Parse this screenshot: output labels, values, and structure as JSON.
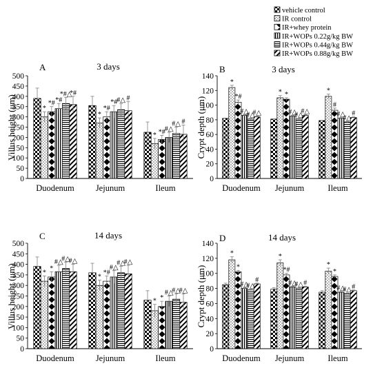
{
  "legend": {
    "entries": [
      "vehicle control",
      "IR control",
      "IR+whey protein",
      "IR+WOPs 0.22g/kg BW",
      "IR+WOPs 0.44g/kg BW",
      "IR+WOPs 0.88g/kg BW"
    ],
    "patterns": [
      "checker",
      "dots",
      "diamond",
      "vlines",
      "hlines",
      "diag"
    ]
  },
  "colors": {
    "bar_stroke": "#000000",
    "fill": "#ffffff",
    "axis": "#000000",
    "errorbar": "#7f7f7f"
  },
  "chart_data": [
    {
      "type": "bar",
      "panel": "A",
      "title": "3 days",
      "ylabel": "Villus height (μm)",
      "ylim": [
        0,
        500
      ],
      "ytick_step": 50,
      "categories": [
        "Duodenum",
        "Jejunum",
        "Ileum"
      ],
      "series": [
        {
          "name": "vehicle control",
          "values": [
            390,
            355,
            225
          ],
          "errors": [
            50,
            45,
            50
          ],
          "marks": [
            "",
            "",
            ""
          ]
        },
        {
          "name": "IR control",
          "values": [
            300,
            270,
            170
          ],
          "errors": [
            25,
            25,
            25
          ],
          "marks": [
            "*",
            "*",
            "*"
          ]
        },
        {
          "name": "IR+whey protein",
          "values": [
            325,
            300,
            190
          ],
          "errors": [
            25,
            25,
            20
          ],
          "marks": [
            "*#",
            "*#",
            "*#"
          ]
        },
        {
          "name": "IR+WOPs 0.22g/kg BW",
          "values": [
            340,
            325,
            200
          ],
          "errors": [
            25,
            30,
            25
          ],
          "marks": [
            "*#",
            "*#",
            "#△"
          ]
        },
        {
          "name": "IR+WOPs 0.44g/kg BW",
          "values": [
            365,
            335,
            220
          ],
          "errors": [
            30,
            30,
            30
          ],
          "marks": [
            "*#△",
            "#△",
            "#△"
          ]
        },
        {
          "name": "IR+WOPs 0.88g/kg BW",
          "values": [
            360,
            330,
            215
          ],
          "errors": [
            40,
            45,
            45
          ],
          "marks": [
            "*#",
            "#",
            "#"
          ]
        }
      ]
    },
    {
      "type": "bar",
      "panel": "B",
      "title": "3 days",
      "ylabel": "Crypt depth (μm)",
      "ylim": [
        0,
        140
      ],
      "ytick_step": 20,
      "categories": [
        "Duodenum",
        "Jejunum",
        "Ileum"
      ],
      "series": [
        {
          "name": "vehicle control",
          "values": [
            82,
            81,
            79
          ],
          "errors": [
            0,
            0,
            0
          ],
          "marks": [
            "",
            "",
            ""
          ]
        },
        {
          "name": "IR control",
          "values": [
            124,
            110,
            112
          ],
          "errors": [
            3,
            3,
            3
          ],
          "marks": [
            "*",
            "*",
            "*"
          ]
        },
        {
          "name": "IR+whey protein",
          "values": [
            104,
            108,
            93
          ],
          "errors": [
            3,
            2,
            3
          ],
          "marks": [
            "*#",
            "*",
            "#"
          ]
        },
        {
          "name": "IR+WOPs 0.22g/kg BW",
          "values": [
            86,
            85,
            82
          ],
          "errors": [
            1,
            1,
            1
          ],
          "marks": [
            "#△",
            "#△",
            "#△"
          ]
        },
        {
          "name": "IR+WOPs 0.44g/kg BW",
          "values": [
            81,
            81,
            77
          ],
          "errors": [
            1,
            1,
            1
          ],
          "marks": [
            "#△",
            "#△",
            "#△"
          ]
        },
        {
          "name": "IR+WOPs 0.88g/kg BW",
          "values": [
            84,
            86,
            83
          ],
          "errors": [
            1,
            1,
            1
          ],
          "marks": [
            "#△",
            "#△",
            "#"
          ]
        }
      ]
    },
    {
      "type": "bar",
      "panel": "C",
      "title": "14 days",
      "ylabel": "Villus height (μm)",
      "ylim": [
        0,
        500
      ],
      "ytick_step": 50,
      "categories": [
        "Duodenum",
        "Jejunum",
        "Ileum"
      ],
      "series": [
        {
          "name": "vehicle control",
          "values": [
            390,
            360,
            230
          ],
          "errors": [
            45,
            45,
            45
          ],
          "marks": [
            "",
            "",
            ""
          ]
        },
        {
          "name": "IR control",
          "values": [
            320,
            300,
            180
          ],
          "errors": [
            25,
            25,
            30
          ],
          "marks": [
            "*",
            "*",
            "*"
          ]
        },
        {
          "name": "IR+whey protein",
          "values": [
            340,
            320,
            200
          ],
          "errors": [
            25,
            25,
            25
          ],
          "marks": [
            "*",
            "*#",
            "*"
          ]
        },
        {
          "name": "IR+WOPs 0.22g/kg BW",
          "values": [
            365,
            340,
            225
          ],
          "errors": [
            30,
            30,
            25
          ],
          "marks": [
            "#△",
            "#△",
            "#△"
          ]
        },
        {
          "name": "IR+WOPs 0.44g/kg BW",
          "values": [
            380,
            360,
            235
          ],
          "errors": [
            30,
            30,
            25
          ],
          "marks": [
            "#△",
            "#△",
            "#△"
          ]
        },
        {
          "name": "IR+WOPs 0.88g/kg BW",
          "values": [
            365,
            355,
            220
          ],
          "errors": [
            35,
            40,
            40
          ],
          "marks": [
            "#△",
            "#△",
            "#△"
          ]
        }
      ]
    },
    {
      "type": "bar",
      "panel": "D",
      "title": "14 days",
      "ylabel": "Crypt depth (μm)",
      "ylim": [
        0,
        140
      ],
      "ytick_step": 20,
      "categories": [
        "Duodenum",
        "Jejunum",
        "Ileum"
      ],
      "series": [
        {
          "name": "vehicle control",
          "values": [
            85,
            79,
            75
          ],
          "errors": [
            2,
            2,
            2
          ],
          "marks": [
            "",
            "",
            ""
          ]
        },
        {
          "name": "IR control",
          "values": [
            118,
            114,
            103
          ],
          "errors": [
            4,
            4,
            4
          ],
          "marks": [
            "*",
            "*",
            "*"
          ]
        },
        {
          "name": "IR+whey protein",
          "values": [
            102,
            98,
            96
          ],
          "errors": [
            2,
            2,
            2
          ],
          "marks": [
            "*",
            "*#",
            "*"
          ]
        },
        {
          "name": "IR+WOPs 0.22g/kg BW",
          "values": [
            80,
            82,
            75
          ],
          "errors": [
            1,
            1,
            1
          ],
          "marks": [
            "#△",
            "#△",
            "#△"
          ]
        },
        {
          "name": "IR+WOPs 0.44g/kg BW",
          "values": [
            78,
            80,
            73
          ],
          "errors": [
            1,
            1,
            1
          ],
          "marks": [
            "#△",
            "#△",
            "#△"
          ]
        },
        {
          "name": "IR+WOPs 0.88g/kg BW",
          "values": [
            86,
            82,
            77
          ],
          "errors": [
            1,
            1,
            1
          ],
          "marks": [
            "#",
            "#",
            "#"
          ]
        }
      ]
    }
  ]
}
